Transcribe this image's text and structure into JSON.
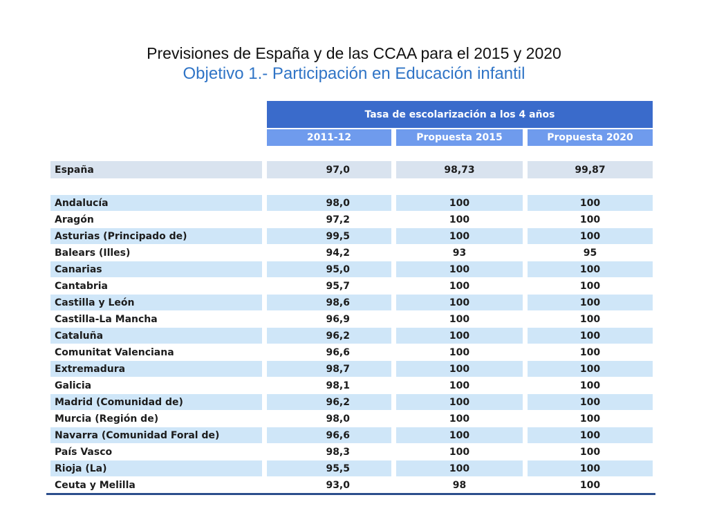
{
  "title": {
    "line1": "Previsiones de España y de las CCAA para el 2015 y 2020",
    "line2": "Objetivo 1.- Participación en Educación infantil"
  },
  "table": {
    "group_header": "Tasa de escolarización a los 4 años",
    "columns": [
      "2011-12",
      "Propuesta 2015",
      "Propuesta 2020"
    ],
    "national": {
      "name": "España",
      "v2011": "97,0",
      "p2015": "98,73",
      "p2020": "99,87"
    },
    "rows": [
      {
        "name": "Andalucía",
        "v2011": "98,0",
        "p2015": "100",
        "p2020": "100"
      },
      {
        "name": "Aragón",
        "v2011": "97,2",
        "p2015": "100",
        "p2020": "100"
      },
      {
        "name": "Asturias (Principado de)",
        "v2011": "99,5",
        "p2015": "100",
        "p2020": "100"
      },
      {
        "name": "Balears (Illes)",
        "v2011": "94,2",
        "p2015": "93",
        "p2020": "95"
      },
      {
        "name": "Canarias",
        "v2011": "95,0",
        "p2015": "100",
        "p2020": "100"
      },
      {
        "name": "Cantabria",
        "v2011": "95,7",
        "p2015": "100",
        "p2020": "100"
      },
      {
        "name": "Castilla y León",
        "v2011": "98,6",
        "p2015": "100",
        "p2020": "100"
      },
      {
        "name": "Castilla-La Mancha",
        "v2011": "96,9",
        "p2015": "100",
        "p2020": "100"
      },
      {
        "name": "Cataluña",
        "v2011": "96,2",
        "p2015": "100",
        "p2020": "100"
      },
      {
        "name": "Comunitat Valenciana",
        "v2011": "96,6",
        "p2015": "100",
        "p2020": "100"
      },
      {
        "name": "Extremadura",
        "v2011": "98,7",
        "p2015": "100",
        "p2020": "100"
      },
      {
        "name": "Galicia",
        "v2011": "98,1",
        "p2015": "100",
        "p2020": "100"
      },
      {
        "name": "Madrid (Comunidad de)",
        "v2011": "96,2",
        "p2015": "100",
        "p2020": "100"
      },
      {
        "name": "Murcia (Región de)",
        "v2011": "98,0",
        "p2015": "100",
        "p2020": "100"
      },
      {
        "name": "Navarra (Comunidad Foral de)",
        "v2011": "96,6",
        "p2015": "100",
        "p2020": "100"
      },
      {
        "name": "País Vasco",
        "v2011": "98,3",
        "p2015": "100",
        "p2020": "100"
      },
      {
        "name": "Rioja (La)",
        "v2011": "95,5",
        "p2015": "100",
        "p2020": "100"
      },
      {
        "name": "Ceuta y Melilla",
        "v2011": "93,0",
        "p2015": "98",
        "p2020": "100"
      }
    ]
  },
  "colors": {
    "title_text": "#111111",
    "subtitle_text": "#2f74c6",
    "header_dark": "#3a6bcb",
    "header_light": "#6f9bed",
    "row_shade": "#cfe6f8"
  }
}
